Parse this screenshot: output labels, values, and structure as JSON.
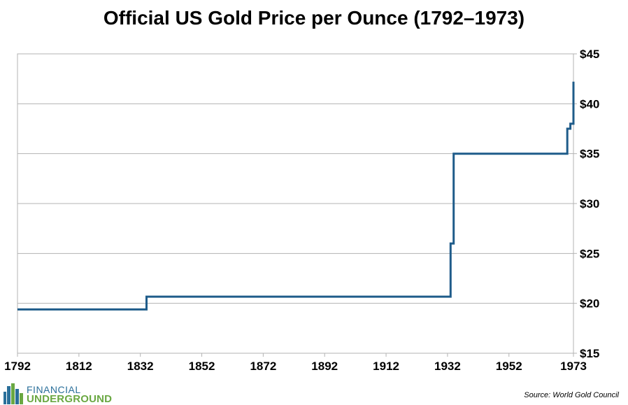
{
  "chart_data": {
    "type": "line",
    "title": "Official US Gold Price per Ounce (1792–1973)",
    "xlabel": "",
    "ylabel": "",
    "xlim": [
      1792,
      1973
    ],
    "ylim": [
      15,
      45
    ],
    "x_ticks": [
      1792,
      1812,
      1832,
      1852,
      1872,
      1892,
      1912,
      1932,
      1952,
      1973
    ],
    "y_ticks": [
      15,
      20,
      25,
      30,
      35,
      40,
      45
    ],
    "y_tick_labels": [
      "$15",
      "$20",
      "$25",
      "$30",
      "$35",
      "$40",
      "$45"
    ],
    "y_axis_side": "right",
    "grid": "horizontal",
    "series": [
      {
        "name": "Official US Gold Price",
        "color": "#1f5c8a",
        "step": true,
        "x": [
          1792,
          1834,
          1834,
          1933,
          1933,
          1934,
          1934,
          1971,
          1971,
          1972,
          1972,
          1973,
          1973
        ],
        "y": [
          19.39,
          19.39,
          20.67,
          20.67,
          26.0,
          26.0,
          35.0,
          35.0,
          37.5,
          37.5,
          38.0,
          38.0,
          42.22
        ]
      }
    ]
  },
  "logo": {
    "line1": "FINANCIAL",
    "line2": "UNDERGROUND"
  },
  "source": "Source: World Gold Council"
}
